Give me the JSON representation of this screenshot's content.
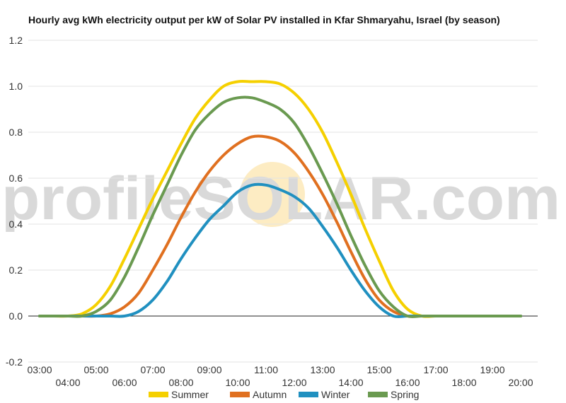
{
  "chart_data": {
    "type": "line",
    "title": "Hourly avg kWh electricity output per kW of Solar PV installed in Kfar Shmaryahu, Israel (by season)",
    "xlabel": "",
    "ylabel": "",
    "x_tick_labels": [
      "03:00",
      "04:00",
      "05:00",
      "06:00",
      "07:00",
      "08:00",
      "09:00",
      "10:00",
      "11:00",
      "12:00",
      "13:00",
      "14:00",
      "15:00",
      "16:00",
      "17:00",
      "18:00",
      "19:00",
      "20:00"
    ],
    "ylim": [
      -0.2,
      1.2
    ],
    "y_ticks": [
      "-0.2",
      "0.0",
      "0.2",
      "0.4",
      "0.6",
      "0.8",
      "1.0",
      "1.2"
    ],
    "grid": "horizontal",
    "legend": "bottom",
    "x": [
      3,
      3.5,
      4,
      4.5,
      5,
      5.5,
      6,
      6.5,
      7,
      7.5,
      8,
      8.5,
      9,
      9.5,
      10,
      10.5,
      11,
      11.5,
      12,
      12.5,
      13,
      13.5,
      14,
      14.5,
      15,
      15.5,
      16,
      16.5,
      17,
      17.5,
      18,
      18.5,
      19,
      19.5,
      20
    ],
    "series": [
      {
        "name": "Summer",
        "color": "#f5d000",
        "values": [
          0,
          0,
          0,
          0.01,
          0.05,
          0.13,
          0.25,
          0.38,
          0.51,
          0.63,
          0.75,
          0.86,
          0.94,
          1.0,
          1.02,
          1.02,
          1.02,
          1.01,
          0.97,
          0.9,
          0.8,
          0.67,
          0.53,
          0.38,
          0.24,
          0.11,
          0.03,
          0,
          0,
          0,
          0,
          0,
          0,
          0,
          0
        ]
      },
      {
        "name": "Autumn",
        "color": "#e07020",
        "values": [
          0,
          0,
          0,
          0,
          0,
          0.01,
          0.04,
          0.1,
          0.2,
          0.31,
          0.43,
          0.54,
          0.63,
          0.7,
          0.75,
          0.78,
          0.78,
          0.76,
          0.71,
          0.63,
          0.53,
          0.41,
          0.28,
          0.16,
          0.07,
          0.02,
          0,
          0,
          0,
          0,
          0,
          0,
          0,
          0,
          0
        ]
      },
      {
        "name": "Winter",
        "color": "#2090c0",
        "values": [
          0,
          0,
          0,
          0,
          0,
          0,
          0,
          0.02,
          0.07,
          0.15,
          0.25,
          0.34,
          0.42,
          0.48,
          0.54,
          0.57,
          0.57,
          0.55,
          0.52,
          0.47,
          0.39,
          0.3,
          0.2,
          0.11,
          0.04,
          0,
          0,
          0,
          0,
          0,
          0,
          0,
          0,
          0,
          0
        ]
      },
      {
        "name": "Spring",
        "color": "#6a9a50",
        "values": [
          0,
          0,
          0,
          0,
          0.02,
          0.07,
          0.17,
          0.3,
          0.44,
          0.57,
          0.7,
          0.81,
          0.88,
          0.93,
          0.95,
          0.95,
          0.93,
          0.9,
          0.84,
          0.74,
          0.62,
          0.49,
          0.35,
          0.22,
          0.11,
          0.04,
          0,
          0,
          0,
          0,
          0,
          0,
          0,
          0,
          0
        ]
      }
    ],
    "watermark": "profileSOLAR.com"
  }
}
